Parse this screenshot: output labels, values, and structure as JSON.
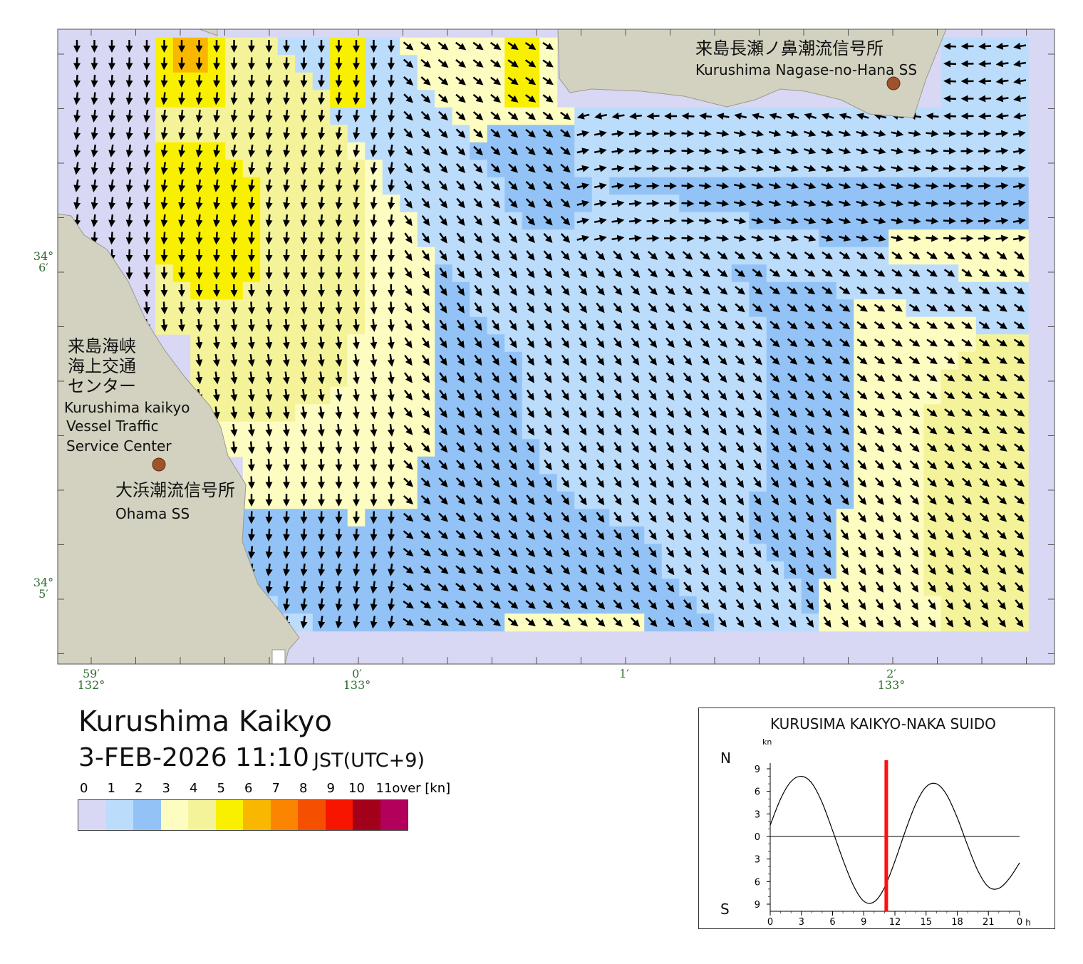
{
  "map": {
    "stations": [
      {
        "name_jp": "来島長瀬ノ鼻潮流信号所",
        "name_en": "Kurushima Nagase-no-Hana SS"
      },
      {
        "name_jp": "大浜潮流信号所",
        "name_en": "Ohama SS"
      }
    ],
    "vts": {
      "name_jp_1": "来島海峡",
      "name_jp_2": "海上交通",
      "name_jp_3": "センター",
      "name_en_1": "Kurushima kaikyo",
      "name_en_2": "Vessel Traffic",
      "name_en_3": "Service Center"
    },
    "lat_labels": [
      {
        "deg": "34°",
        "min": "6′"
      },
      {
        "deg": "34°",
        "min": "5′"
      }
    ],
    "lon_labels": [
      {
        "min": "59′",
        "deg": "132°"
      },
      {
        "min": "0′",
        "deg": "133°"
      },
      {
        "min": "1′",
        "deg": ""
      },
      {
        "min": "2′",
        "deg": "133°"
      }
    ],
    "land_color": "#d3d2c0",
    "water_color": "#d8d8f4"
  },
  "info": {
    "title": "Kurushima Kaikyo",
    "datetime": "3-FEB-2026 11:10",
    "timezone": "JST(UTC+9)"
  },
  "legend": {
    "labels": [
      "0",
      "1",
      "2",
      "3",
      "4",
      "5",
      "6",
      "7",
      "8",
      "9",
      "10",
      "11over [kn]"
    ],
    "colors": [
      "#d8d8f4",
      "#bcdcfc",
      "#93c3f6",
      "#fdfdc2",
      "#f5f39a",
      "#f9f000",
      "#f9b700",
      "#fb8400",
      "#f55000",
      "#f71500",
      "#a3001a",
      "#b3005a"
    ]
  },
  "tide_chart": {
    "title": "KURUSIMA KAIKYO-NAKA SUIDO",
    "unit": "kn",
    "north_label": "N",
    "south_label": "S",
    "y_ticks": [
      "9",
      "6",
      "3",
      "0",
      "3",
      "6",
      "9"
    ],
    "x_ticks": [
      "0",
      "3",
      "6",
      "9",
      "12",
      "15",
      "18",
      "21",
      "0"
    ],
    "x_unit": "h",
    "current_hour": 11.17,
    "curve_color": "#000000",
    "marker_color": "#ff1010",
    "chart_data": {
      "type": "line",
      "x_range": [
        0,
        24
      ],
      "y_range": [
        -9,
        9
      ],
      "x": [
        0,
        1,
        2,
        3,
        4,
        5,
        6,
        7,
        8,
        9,
        10,
        11,
        12,
        13,
        14,
        15,
        16,
        17,
        18,
        19,
        20,
        21,
        22,
        23,
        24
      ],
      "y": [
        1.5,
        5.0,
        7.3,
        8.0,
        7.1,
        4.5,
        0.8,
        -3.1,
        -6.5,
        -8.6,
        -8.7,
        -6.8,
        -3.3,
        0.7,
        4.3,
        6.6,
        7.0,
        5.5,
        2.5,
        -1.2,
        -4.6,
        -6.7,
        -6.9,
        -5.6,
        -3.5
      ]
    }
  }
}
